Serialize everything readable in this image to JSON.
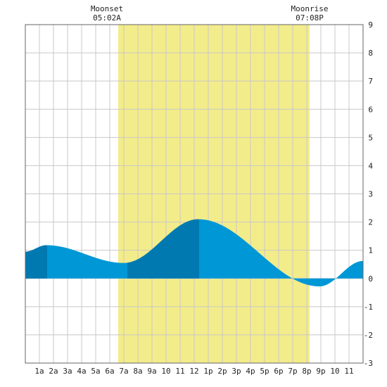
{
  "moon": {
    "moonset_label": "Moonset",
    "moonset_time": "05:02A",
    "moonrise_label": "Moonrise",
    "moonrise_time": "07:08P"
  },
  "chart_data": {
    "type": "area",
    "x_ticks": [
      "1a",
      "2a",
      "3a",
      "4a",
      "5a",
      "6a",
      "7a",
      "8a",
      "9a",
      "10",
      "11",
      "12",
      "1p",
      "2p",
      "3p",
      "4p",
      "5p",
      "6p",
      "7p",
      "8p",
      "9p",
      "10",
      "11"
    ],
    "y_ticks": [
      "9",
      "8",
      "7",
      "6",
      "5",
      "4",
      "3",
      "2",
      "1",
      "0",
      "-1",
      "-2",
      "-3"
    ],
    "ylim": [
      -3,
      9
    ],
    "xlim_hours": [
      0,
      24
    ],
    "grid": true,
    "colors": {
      "tide_light": "#0097d6",
      "tide_dark": "#0079b0",
      "daylight": "#f3ec8a",
      "grid": "#c8c8c8",
      "frame": "#666666"
    },
    "daylight_hours": [
      6.6,
      20.2
    ],
    "tide_extremes": [
      {
        "hour": 0.0,
        "height": 0.95
      },
      {
        "hour": 1.5,
        "height": 1.18
      },
      {
        "hour": 7.0,
        "height": 0.55
      },
      {
        "hour": 12.3,
        "height": 2.1
      },
      {
        "hour": 20.9,
        "height": -0.28
      },
      {
        "hour": 24.0,
        "height": 0.62
      }
    ],
    "dark_bands_hours": [
      [
        0.0,
        1.55
      ],
      [
        7.25,
        12.35
      ]
    ]
  }
}
